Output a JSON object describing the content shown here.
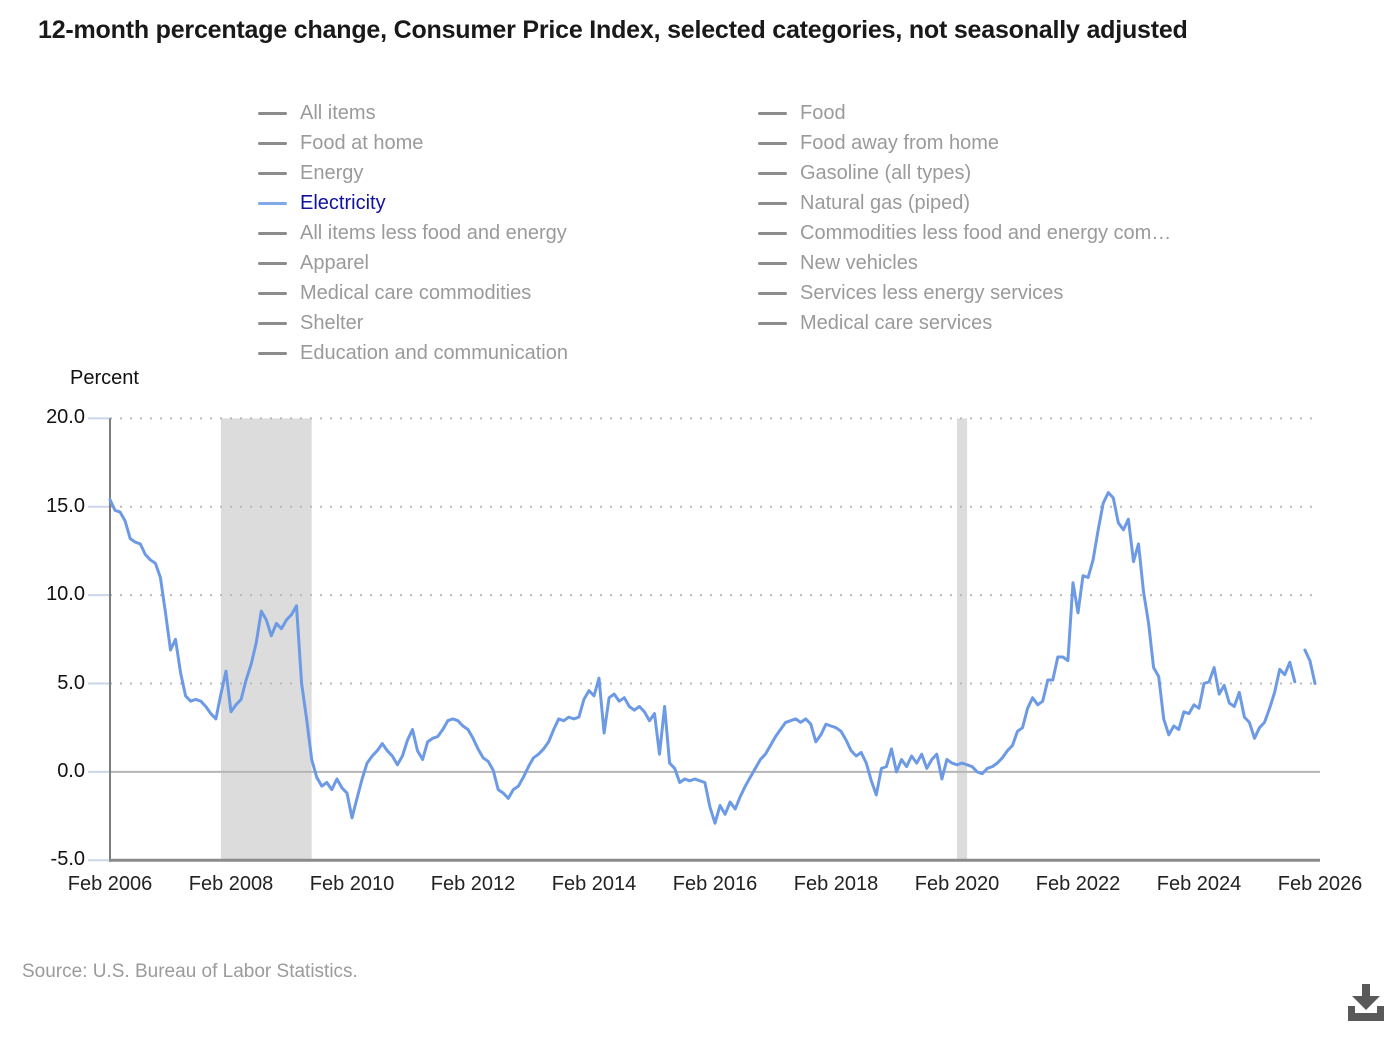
{
  "title": "12-month percentage change, Consumer Price Index, selected categories, not seasonally adjusted",
  "legend": {
    "left_column": [
      {
        "label": "All items",
        "selected": false
      },
      {
        "label": "Food at home",
        "selected": false
      },
      {
        "label": "Energy",
        "selected": false
      },
      {
        "label": "Electricity",
        "selected": true
      },
      {
        "label": "All items less food and energy",
        "selected": false
      },
      {
        "label": "Apparel",
        "selected": false
      },
      {
        "label": "Medical care commodities",
        "selected": false
      },
      {
        "label": "Shelter",
        "selected": false
      },
      {
        "label": "Education and communication",
        "selected": false
      }
    ],
    "right_column": [
      {
        "label": "Food",
        "selected": false
      },
      {
        "label": "Food away from home",
        "selected": false
      },
      {
        "label": "Gasoline (all types)",
        "selected": false
      },
      {
        "label": "Natural gas (piped)",
        "selected": false
      },
      {
        "label": "Commodities less food and energy com…",
        "selected": false
      },
      {
        "label": "New vehicles",
        "selected": false
      },
      {
        "label": "Services less energy services",
        "selected": false
      },
      {
        "label": "Medical care services",
        "selected": false
      }
    ]
  },
  "axes": {
    "percent_label": "Percent",
    "y_tick_labels": [
      "20.0",
      "15.0",
      "10.0",
      "5.0",
      "0.0",
      "-5.0"
    ],
    "y_tick_values": [
      20,
      15,
      10,
      5,
      0,
      -5
    ],
    "x_tick_labels": [
      "Feb 2006",
      "Feb 2008",
      "Feb 2010",
      "Feb 2012",
      "Feb 2014",
      "Feb 2016",
      "Feb 2018",
      "Feb 2020",
      "Feb 2022",
      "Feb 2024",
      "Feb 2026"
    ],
    "x_tick_month_step": 24
  },
  "chart_data": {
    "type": "line",
    "title": "12-month percentage change, Consumer Price Index, selected categories, not seasonally adjusted",
    "ylabel": "Percent",
    "ylim": [
      -5,
      20
    ],
    "grid": "dotted horizontal at 20, 15, 10, 5; solid line at 0",
    "legend_position": "top, two columns",
    "x_start": "2006-02",
    "x_end": "2026-01",
    "x_axis_span_months": 240,
    "series": [
      {
        "name": "Electricity",
        "note": "monthly values Feb 2006 - Jan 2026, null = not published (Oct 2025 gap)",
        "values": [
          15.4,
          14.8,
          14.7,
          14.2,
          13.2,
          13.0,
          12.9,
          12.3,
          12.0,
          11.8,
          11.0,
          9.0,
          6.9,
          7.5,
          5.6,
          4.3,
          4.0,
          4.1,
          4.0,
          3.7,
          3.3,
          3.0,
          4.4,
          5.7,
          3.4,
          3.8,
          4.1,
          5.2,
          6.1,
          7.3,
          9.1,
          8.6,
          7.7,
          8.4,
          8.1,
          8.6,
          8.9,
          9.4,
          5.0,
          3.0,
          0.7,
          -0.3,
          -0.8,
          -0.6,
          -1.0,
          -0.4,
          -0.9,
          -1.2,
          -2.6,
          -1.5,
          -0.4,
          0.5,
          0.9,
          1.2,
          1.6,
          1.2,
          0.9,
          0.4,
          0.9,
          1.8,
          2.4,
          1.2,
          0.7,
          1.7,
          1.9,
          2.0,
          2.4,
          2.9,
          3.0,
          2.9,
          2.6,
          2.4,
          1.9,
          1.3,
          0.8,
          0.6,
          0.1,
          -1.0,
          -1.2,
          -1.5,
          -1.0,
          -0.8,
          -0.3,
          0.3,
          0.8,
          1.0,
          1.3,
          1.7,
          2.4,
          3.0,
          2.9,
          3.1,
          3.0,
          3.1,
          4.1,
          4.6,
          4.3,
          5.3,
          2.2,
          4.2,
          4.4,
          4.0,
          4.2,
          3.7,
          3.5,
          3.7,
          3.4,
          2.9,
          3.3,
          1.0,
          3.7,
          0.5,
          0.2,
          -0.6,
          -0.4,
          -0.5,
          -0.4,
          -0.5,
          -0.6,
          -2.0,
          -2.9,
          -1.9,
          -2.4,
          -1.7,
          -2.1,
          -1.4,
          -0.8,
          -0.3,
          0.2,
          0.7,
          1.0,
          1.5,
          2.0,
          2.4,
          2.8,
          2.9,
          3.0,
          2.8,
          3.0,
          2.7,
          1.7,
          2.1,
          2.7,
          2.6,
          2.5,
          2.3,
          1.8,
          1.2,
          0.9,
          1.1,
          0.5,
          -0.5,
          -1.3,
          0.2,
          0.3,
          1.3,
          0.0,
          0.7,
          0.3,
          0.9,
          0.5,
          1.0,
          0.2,
          0.7,
          1.0,
          -0.4,
          0.7,
          0.5,
          0.4,
          0.5,
          0.4,
          0.3,
          0.0,
          -0.1,
          0.2,
          0.3,
          0.5,
          0.8,
          1.2,
          1.5,
          2.3,
          2.5,
          3.6,
          4.2,
          3.8,
          4.0,
          5.2,
          5.2,
          6.5,
          6.5,
          6.3,
          10.7,
          9.0,
          11.1,
          11.0,
          12.0,
          13.7,
          15.2,
          15.8,
          15.5,
          14.1,
          13.7,
          14.3,
          11.9,
          12.9,
          10.2,
          8.4,
          5.9,
          5.4,
          3.0,
          2.1,
          2.6,
          2.4,
          3.4,
          3.3,
          3.8,
          3.6,
          5.0,
          5.1,
          5.9,
          4.4,
          4.9,
          3.9,
          3.7,
          4.5,
          3.1,
          2.8,
          1.9,
          2.5,
          2.8,
          3.6,
          4.5,
          5.8,
          5.5,
          6.2,
          5.1,
          null,
          6.9,
          6.3,
          5.0
        ]
      }
    ],
    "recession_bands": [
      {
        "label": "recession 2007-2009",
        "start_month_index": 22,
        "end_month_index": 40
      },
      {
        "label": "recession 2020",
        "start_month_index": 168,
        "end_month_index": 170
      }
    ]
  },
  "colors": {
    "series_line": "#6d9ae4",
    "selected_legend_text": "#12129e",
    "selected_legend_marker": "#7fa9e8",
    "legend_text": "#9a9a9a",
    "legend_marker": "#8c8c8c",
    "recession_band": "#dcdcdc",
    "grid_dotted": "#b9b9b9",
    "zero_line": "#b5b5b5",
    "y_axis_spine": "#7d7d7d",
    "x_axis_spine": "#8a8a8a",
    "axis_tick": "#ccd6eb",
    "download_icon": "#595959"
  },
  "source": "Source: U.S. Bureau of Labor Statistics.",
  "icons": {
    "download": "download-icon"
  }
}
